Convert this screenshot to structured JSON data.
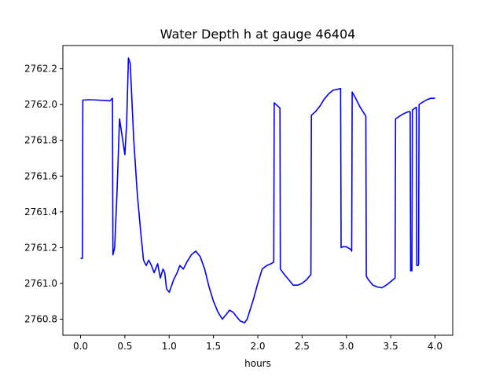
{
  "chart_data": {
    "type": "line",
    "title": "Water Depth h at gauge 46404",
    "xlabel": "hours",
    "ylabel": "",
    "xlim": [
      -0.2,
      4.2
    ],
    "ylim": [
      2760.71,
      2762.33
    ],
    "x_ticks": [
      0.0,
      0.5,
      1.0,
      1.5,
      2.0,
      2.5,
      3.0,
      3.5,
      4.0
    ],
    "x_tick_labels": [
      "0.0",
      "0.5",
      "1.0",
      "1.5",
      "2.0",
      "2.5",
      "3.0",
      "3.5",
      "4.0"
    ],
    "y_ticks": [
      2760.8,
      2761.0,
      2761.2,
      2761.4,
      2761.6,
      2761.8,
      2762.0,
      2762.2
    ],
    "y_tick_labels": [
      "2760.8",
      "2761.0",
      "2761.2",
      "2761.4",
      "2761.6",
      "2761.8",
      "2762.0",
      "2762.2"
    ],
    "grid": false,
    "legend": "none",
    "series": [
      {
        "color": "#0000ff",
        "points": [
          [
            0.0,
            2761.14
          ],
          [
            0.02,
            2761.14
          ],
          [
            0.025,
            2762.025
          ],
          [
            0.1,
            2762.027
          ],
          [
            0.2,
            2762.025
          ],
          [
            0.3,
            2762.022
          ],
          [
            0.33,
            2762.02
          ],
          [
            0.36,
            2762.035
          ],
          [
            0.365,
            2761.16
          ],
          [
            0.385,
            2761.2
          ],
          [
            0.41,
            2761.5
          ],
          [
            0.44,
            2761.92
          ],
          [
            0.47,
            2761.82
          ],
          [
            0.5,
            2761.72
          ],
          [
            0.52,
            2761.9
          ],
          [
            0.54,
            2762.26
          ],
          [
            0.56,
            2762.23
          ],
          [
            0.6,
            2761.8
          ],
          [
            0.64,
            2761.5
          ],
          [
            0.68,
            2761.28
          ],
          [
            0.71,
            2761.13
          ],
          [
            0.74,
            2761.1
          ],
          [
            0.77,
            2761.13
          ],
          [
            0.8,
            2761.1
          ],
          [
            0.83,
            2761.06
          ],
          [
            0.87,
            2761.11
          ],
          [
            0.9,
            2761.03
          ],
          [
            0.93,
            2761.08
          ],
          [
            0.95,
            2761.06
          ],
          [
            0.97,
            2760.97
          ],
          [
            1.0,
            2760.95
          ],
          [
            1.05,
            2761.02
          ],
          [
            1.09,
            2761.06
          ],
          [
            1.12,
            2761.1
          ],
          [
            1.16,
            2761.08
          ],
          [
            1.2,
            2761.12
          ],
          [
            1.25,
            2761.16
          ],
          [
            1.3,
            2761.18
          ],
          [
            1.35,
            2761.15
          ],
          [
            1.4,
            2761.08
          ],
          [
            1.45,
            2760.98
          ],
          [
            1.5,
            2760.9
          ],
          [
            1.55,
            2760.84
          ],
          [
            1.6,
            2760.8
          ],
          [
            1.65,
            2760.83
          ],
          [
            1.68,
            2760.85
          ],
          [
            1.72,
            2760.84
          ],
          [
            1.75,
            2760.82
          ],
          [
            1.8,
            2760.79
          ],
          [
            1.85,
            2760.78
          ],
          [
            1.88,
            2760.8
          ],
          [
            1.95,
            2760.91
          ],
          [
            2.0,
            2761.0
          ],
          [
            2.05,
            2761.08
          ],
          [
            2.1,
            2761.1
          ],
          [
            2.15,
            2761.11
          ],
          [
            2.18,
            2761.12
          ],
          [
            2.185,
            2762.01
          ],
          [
            2.25,
            2761.98
          ],
          [
            2.255,
            2761.08
          ],
          [
            2.3,
            2761.05
          ],
          [
            2.35,
            2761.02
          ],
          [
            2.4,
            2760.99
          ],
          [
            2.45,
            2760.99
          ],
          [
            2.5,
            2761.0
          ],
          [
            2.55,
            2761.02
          ],
          [
            2.6,
            2761.05
          ],
          [
            2.605,
            2761.94
          ],
          [
            2.65,
            2761.96
          ],
          [
            2.7,
            2761.99
          ],
          [
            2.75,
            2762.03
          ],
          [
            2.8,
            2762.06
          ],
          [
            2.85,
            2762.08
          ],
          [
            2.9,
            2762.085
          ],
          [
            2.935,
            2762.09
          ],
          [
            2.94,
            2761.2
          ],
          [
            2.96,
            2761.205
          ],
          [
            3.0,
            2761.205
          ],
          [
            3.05,
            2761.19
          ],
          [
            3.06,
            2761.18
          ],
          [
            3.065,
            2762.07
          ],
          [
            3.1,
            2762.04
          ],
          [
            3.15,
            2761.99
          ],
          [
            3.2,
            2761.95
          ],
          [
            3.22,
            2761.935
          ],
          [
            3.225,
            2761.04
          ],
          [
            3.25,
            2761.02
          ],
          [
            3.3,
            2760.99
          ],
          [
            3.35,
            2760.98
          ],
          [
            3.4,
            2760.975
          ],
          [
            3.45,
            2760.99
          ],
          [
            3.5,
            2761.01
          ],
          [
            3.55,
            2761.03
          ],
          [
            3.555,
            2761.92
          ],
          [
            3.6,
            2761.935
          ],
          [
            3.65,
            2761.95
          ],
          [
            3.7,
            2761.96
          ],
          [
            3.72,
            2761.96
          ],
          [
            3.725,
            2761.07
          ],
          [
            3.735,
            2761.08
          ],
          [
            3.74,
            2761.07
          ],
          [
            3.745,
            2761.97
          ],
          [
            3.79,
            2761.985
          ],
          [
            3.795,
            2761.1
          ],
          [
            3.81,
            2761.1
          ],
          [
            3.815,
            2761.11
          ],
          [
            3.82,
            2762.0
          ],
          [
            3.85,
            2762.01
          ],
          [
            3.9,
            2762.025
          ],
          [
            3.95,
            2762.035
          ],
          [
            4.0,
            2762.035
          ]
        ]
      }
    ]
  }
}
